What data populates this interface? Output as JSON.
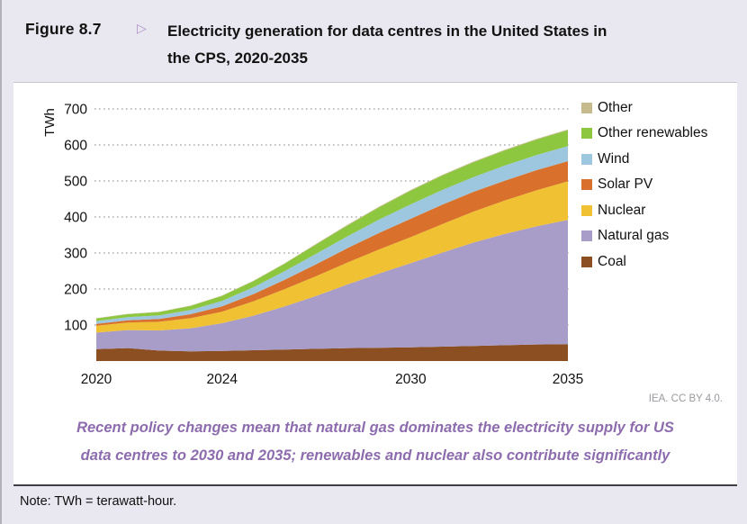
{
  "figure": {
    "label": "Figure 8.7",
    "marker": "▷",
    "title_line1": "Electricity generation for data centres in the United States in",
    "title_line2": "the CPS, 2020-2035"
  },
  "chart_data": {
    "type": "area",
    "stacked": true,
    "title": "Electricity generation for data centres in the United States in the CPS, 2020-2035",
    "ylabel": "TWh",
    "xlabel": "",
    "ylim": [
      0,
      700
    ],
    "y_ticks": [
      100,
      200,
      300,
      400,
      500,
      600,
      700
    ],
    "x": [
      2020,
      2021,
      2022,
      2023,
      2024,
      2025,
      2026,
      2027,
      2028,
      2029,
      2030,
      2031,
      2032,
      2033,
      2034,
      2035
    ],
    "x_ticks": [
      2020,
      2024,
      2030,
      2035
    ],
    "grid": "horizontal-dotted",
    "legend_position": "top-right",
    "series": [
      {
        "name": "Coal",
        "color": "#8c4f22",
        "values": [
          33,
          36,
          29,
          27,
          28,
          30,
          32,
          34,
          36,
          37,
          38,
          40,
          42,
          44,
          46,
          47
        ]
      },
      {
        "name": "Natural gas",
        "color": "#a89cc8",
        "values": [
          46,
          50,
          56,
          64,
          77,
          96,
          120,
          147,
          177,
          206,
          234,
          261,
          287,
          309,
          328,
          345
        ]
      },
      {
        "name": "Nuclear",
        "color": "#f0c233",
        "values": [
          19,
          21,
          24,
          28,
          32,
          40,
          48,
          55,
          61,
          67,
          72,
          79,
          86,
          93,
          100,
          107
        ]
      },
      {
        "name": "Solar PV",
        "color": "#d9712c",
        "values": [
          5,
          6,
          8,
          11,
          15,
          20,
          26,
          33,
          40,
          46,
          51,
          54,
          55,
          55,
          56,
          56
        ]
      },
      {
        "name": "Wind",
        "color": "#9cc7de",
        "values": [
          8,
          9,
          10,
          12,
          15,
          19,
          24,
          29,
          33,
          37,
          40,
          41,
          41,
          42,
          42,
          42
        ]
      },
      {
        "name": "Other renewables",
        "color": "#8dc63f",
        "values": [
          7,
          8,
          9,
          11,
          14,
          17,
          21,
          26,
          30,
          34,
          38,
          40,
          41,
          42,
          43,
          44
        ]
      },
      {
        "name": "Other",
        "color": "#c6bb8d",
        "values": [
          1,
          1,
          1,
          1,
          1,
          1,
          1,
          2,
          2,
          2,
          2,
          2,
          2,
          2,
          2,
          2
        ]
      }
    ]
  },
  "credit": "IEA. CC BY 4.0.",
  "caption": {
    "line1": "Recent policy changes mean that natural gas dominates the electricity supply for US",
    "line2": "data centres to 2030 and 2035; renewables and nuclear also contribute significantly"
  },
  "note": "Note: TWh = terawatt-hour.",
  "colors": {
    "background": "#e9e7f0",
    "panel": "#ffffff",
    "caption": "#8d6cae",
    "gridline": "#aeaeae",
    "divider": "#3f3f43"
  }
}
